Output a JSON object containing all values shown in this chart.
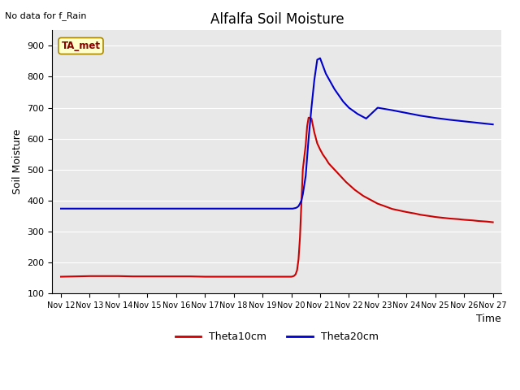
{
  "title": "Alfalfa Soil Moisture",
  "no_data_label": "No data for f_Rain",
  "ta_met_label": "TA_met",
  "ylabel": "Soil Moisture",
  "xlabel": "Time",
  "ylim": [
    100,
    950
  ],
  "background_color": "#e8e8e8",
  "fig_background": "#ffffff",
  "legend_entries": [
    "Theta10cm",
    "Theta20cm"
  ],
  "legend_colors": [
    "#cc0000",
    "#0000cc"
  ],
  "x_tick_labels": [
    "Nov 12",
    "Nov 13",
    "Nov 14",
    "Nov 15",
    "Nov 16",
    "Nov 17",
    "Nov 18",
    "Nov 19",
    "Nov 20",
    "Nov 21",
    "Nov 22",
    "Nov 23",
    "Nov 24",
    "Nov 25",
    "Nov 26",
    "Nov 27"
  ],
  "red_x": [
    0,
    0.5,
    1,
    1.5,
    2,
    2.5,
    3,
    3.5,
    4,
    4.5,
    5,
    5.5,
    6,
    6.5,
    7,
    7.5,
    7.9,
    8.0,
    8.05,
    8.1,
    8.15,
    8.2,
    8.25,
    8.3,
    8.35,
    8.4,
    8.5,
    8.55,
    8.6,
    8.7,
    8.8,
    8.9,
    9.0,
    9.1,
    9.2,
    9.3,
    9.5,
    9.7,
    9.9,
    10.2,
    10.5,
    10.8,
    11.0,
    11.3,
    11.5,
    11.8,
    12.0,
    12.3,
    12.5,
    12.8,
    13.0,
    13.3,
    13.5,
    13.8,
    14.0,
    14.3,
    14.5,
    14.8,
    15.0
  ],
  "red_y": [
    154,
    155,
    156,
    156,
    156,
    155,
    155,
    155,
    155,
    155,
    154,
    154,
    154,
    154,
    154,
    154,
    154,
    154,
    155,
    157,
    162,
    175,
    210,
    280,
    390,
    500,
    580,
    640,
    668,
    665,
    620,
    585,
    565,
    548,
    535,
    520,
    500,
    480,
    460,
    435,
    415,
    400,
    390,
    380,
    373,
    367,
    363,
    358,
    354,
    350,
    347,
    344,
    342,
    340,
    338,
    336,
    334,
    332,
    330
  ],
  "blue_x": [
    0,
    0.5,
    1,
    1.5,
    2,
    2.5,
    3,
    3.5,
    4,
    4.5,
    5,
    5.5,
    6,
    6.5,
    7,
    7.5,
    7.9,
    8.0,
    8.05,
    8.1,
    8.15,
    8.2,
    8.25,
    8.3,
    8.35,
    8.4,
    8.45,
    8.5,
    8.55,
    8.6,
    8.7,
    8.8,
    8.9,
    9.0,
    9.2,
    9.5,
    9.8,
    10.0,
    10.3,
    10.6,
    11.0,
    11.5,
    12.0,
    12.5,
    13.0,
    13.5,
    14.0,
    14.5,
    15.0
  ],
  "blue_y": [
    374,
    374,
    374,
    374,
    374,
    374,
    374,
    374,
    374,
    374,
    374,
    374,
    374,
    374,
    374,
    374,
    374,
    374,
    374,
    375,
    376,
    378,
    382,
    390,
    400,
    420,
    450,
    480,
    540,
    600,
    700,
    790,
    855,
    860,
    810,
    760,
    720,
    700,
    680,
    665,
    700,
    692,
    683,
    674,
    667,
    661,
    656,
    651,
    646
  ]
}
